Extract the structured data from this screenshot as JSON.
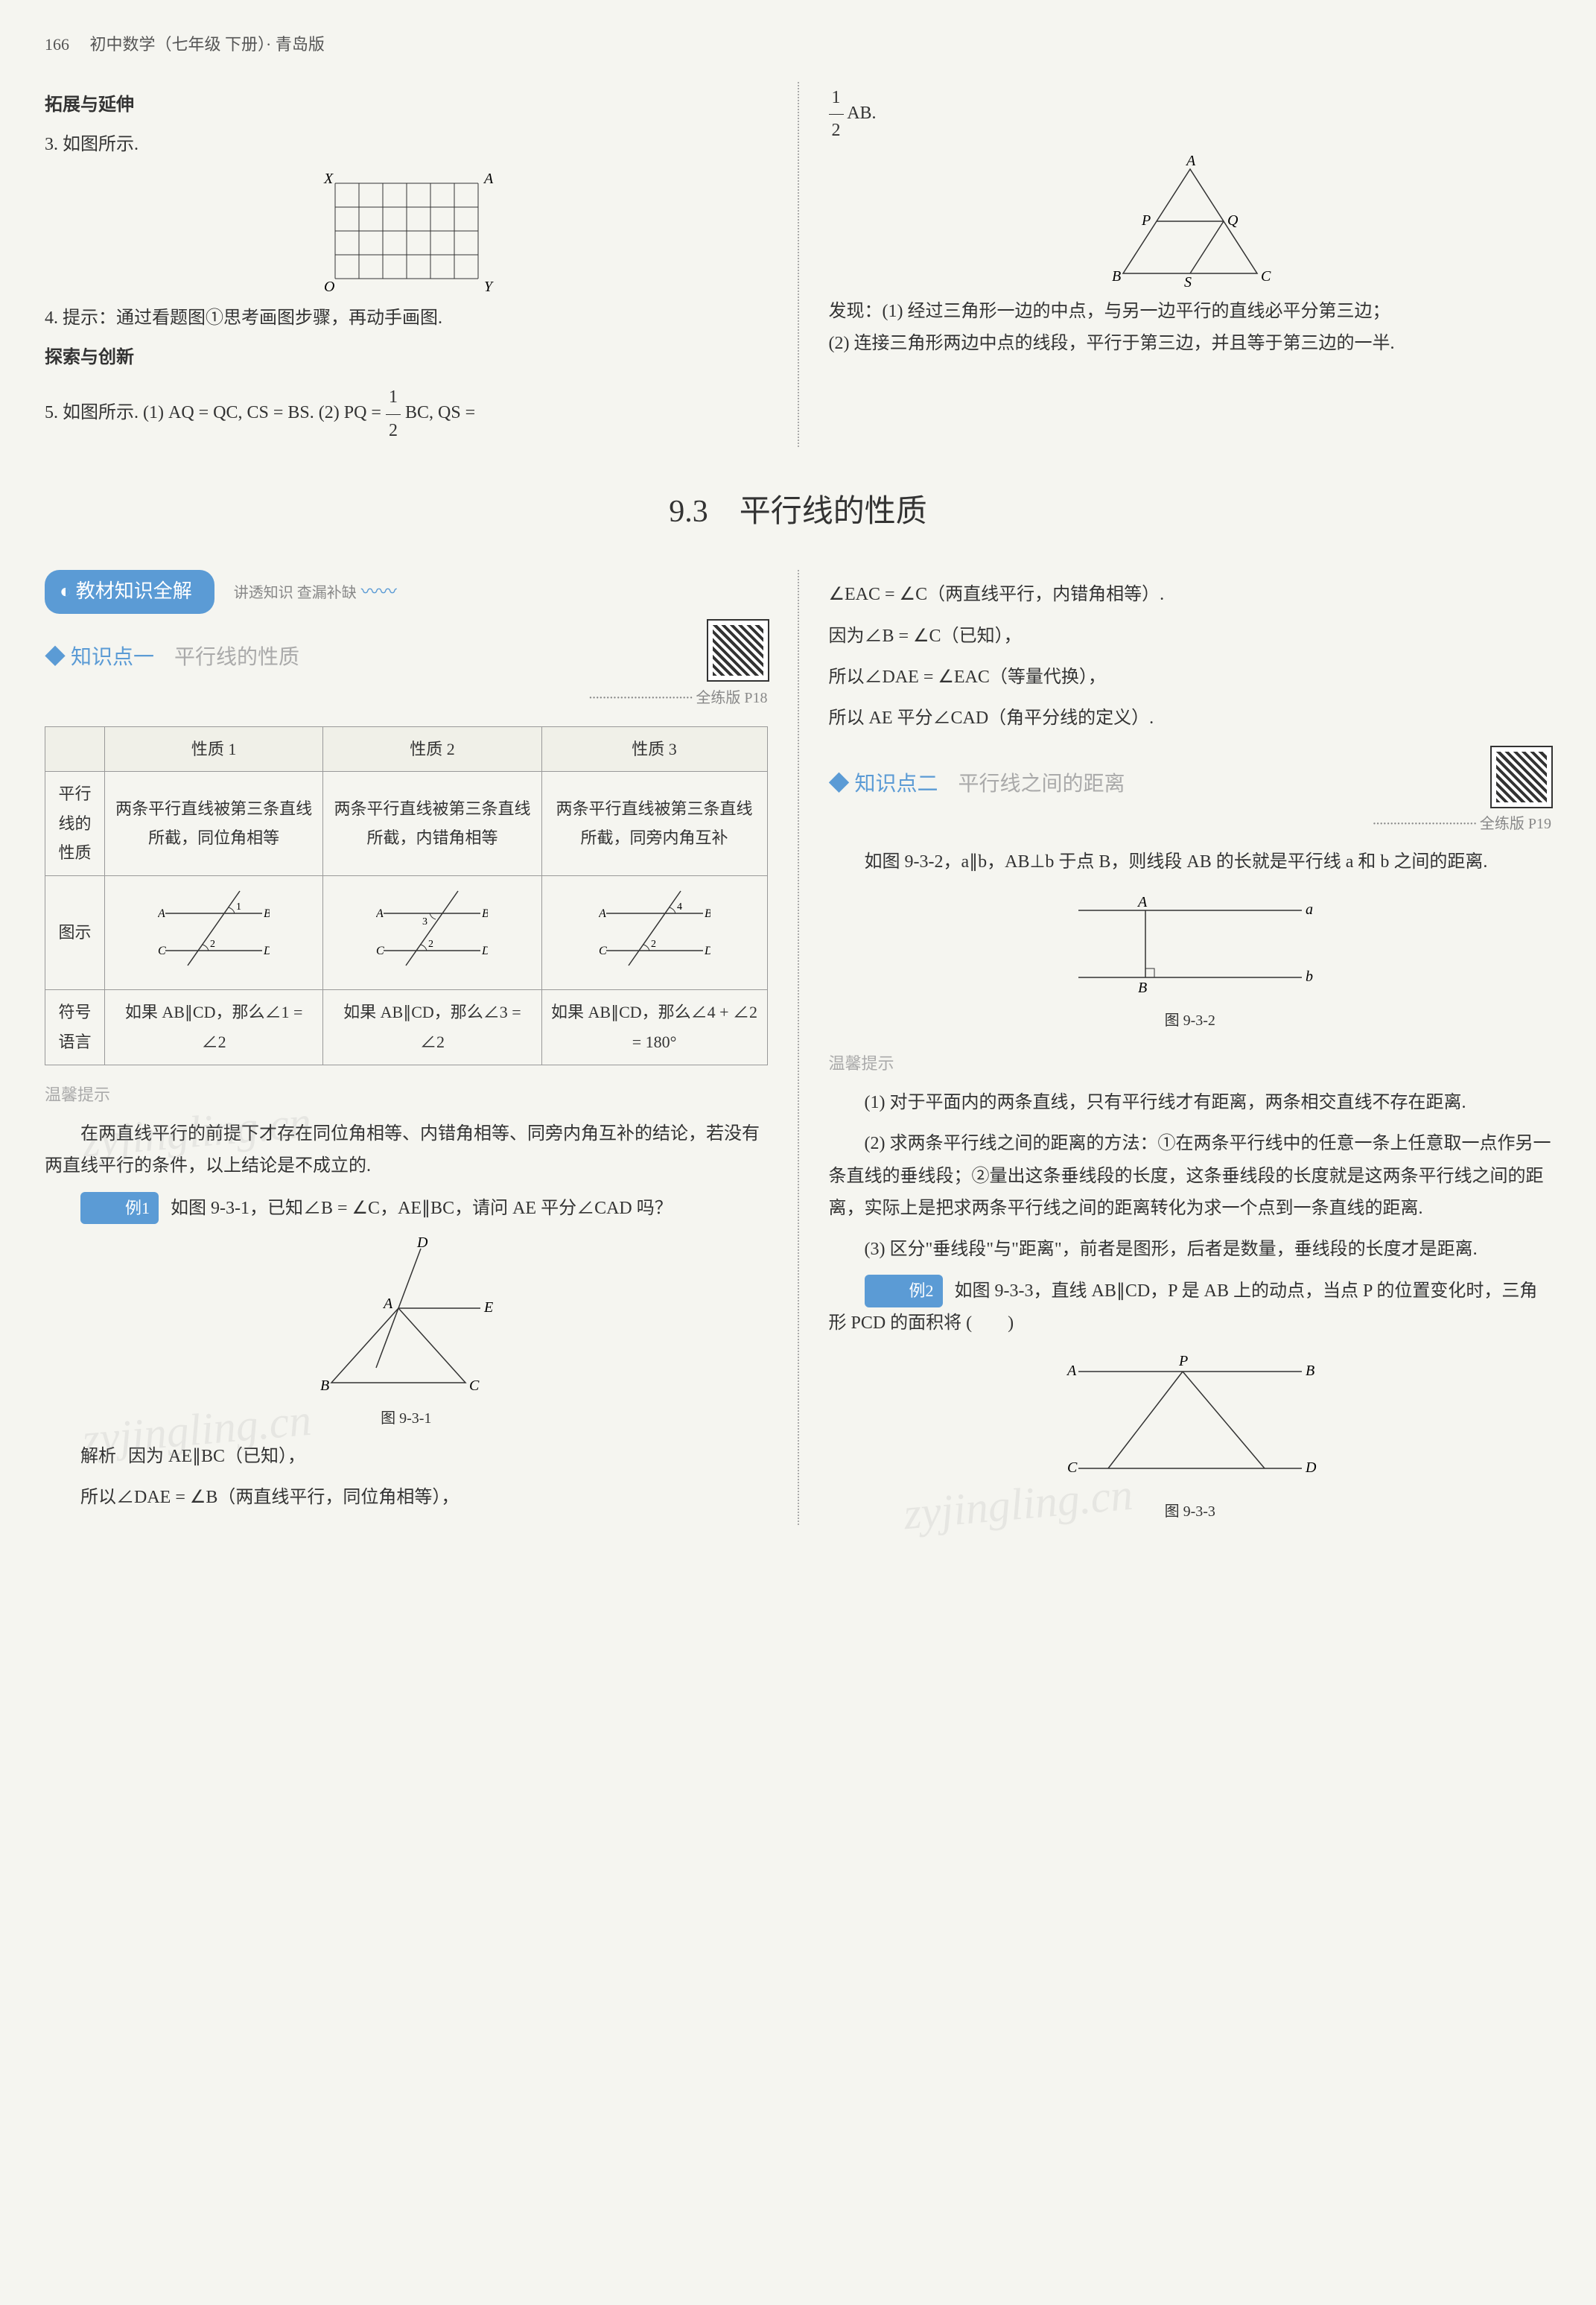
{
  "header": {
    "page_num": "166",
    "book_title": "初中数学（七年级 下册）· 青岛版"
  },
  "top_left": {
    "h1": "拓展与延伸",
    "p3": "3. 如图所示.",
    "grid": {
      "labels": [
        "X",
        "A",
        "O",
        "Y"
      ],
      "rows": 4,
      "cols": 6,
      "cell": 32,
      "stroke": "#333"
    },
    "p4": "4. 提示：通过看题图①思考画图步骤，再动手画图.",
    "h2": "探索与创新",
    "p5_prefix": "5. 如图所示. (1) AQ = QC, CS = BS. (2) PQ = ",
    "p5_frac_num": "1",
    "p5_frac_den": "2",
    "p5_frac_after": "BC, QS ="
  },
  "top_right": {
    "p1_num": "1",
    "p1_den": "2",
    "p1_after": "AB.",
    "triangle": {
      "labels": [
        "A",
        "P",
        "Q",
        "B",
        "S",
        "C"
      ]
    },
    "p2": "发现：(1) 经过三角形一边的中点，与另一边平行的直线必平分第三边；",
    "p3": "(2) 连接三角形两边中点的线段，平行于第三边，并且等于第三边的一半."
  },
  "main_title": "9.3　平行线的性质",
  "pill": {
    "text": "教材知识全解",
    "sub": "讲透知识 查漏补缺"
  },
  "kp1": {
    "prefix": "◆ 知识点一",
    "title": "平行线的性质",
    "ref": "全练版 P18",
    "table": {
      "headers": [
        "",
        "性质 1",
        "性质 2",
        "性质 3"
      ],
      "row_props_label": "平行线的性质",
      "row_props": [
        "两条平行直线被第三条直线所截，同位角相等",
        "两条平行直线被第三条直线所截，内错角相等",
        "两条平行直线被第三条直线所截，同旁内角互补"
      ],
      "row_fig_label": "图示",
      "row_sym_label": "符号语言",
      "row_sym": [
        "如果 AB∥CD，那么∠1 = ∠2",
        "如果 AB∥CD，那么∠3 = ∠2",
        "如果 AB∥CD，那么∠4 + ∠2 = 180°"
      ],
      "fig_colors": {
        "line": "#333",
        "arc": "#666"
      }
    },
    "hint_label": "温馨提示",
    "hint_text": "在两直线平行的前提下才存在同位角相等、内错角相等、同旁内角互补的结论，若没有两直线平行的条件，以上结论是不成立的.",
    "ex1_label": "例1",
    "ex1_text": "如图 9-3-1，已知∠B = ∠C，AE∥BC，请问 AE 平分∠CAD 吗？",
    "fig_9_3_1": {
      "caption": "图 9-3-1",
      "labels": [
        "D",
        "A",
        "E",
        "B",
        "C"
      ]
    },
    "ex1_sol_label": "解析",
    "ex1_sol_l1": "因为 AE∥BC（已知），",
    "ex1_sol_l2": "所以∠DAE = ∠B（两直线平行，同位角相等），"
  },
  "right_col": {
    "cont1": "∠EAC = ∠C（两直线平行，内错角相等）.",
    "cont2": "因为∠B = ∠C（已知），",
    "cont3": "所以∠DAE = ∠EAC（等量代换），",
    "cont4": "所以 AE 平分∠CAD（角平分线的定义）.",
    "kp2_prefix": "◆ 知识点二",
    "kp2_title": "平行线之间的距离",
    "kp2_ref": "全练版 P19",
    "kp2_intro": "如图 9-3-2，a∥b，AB⊥b 于点 B，则线段 AB 的长就是平行线 a 和 b 之间的距离.",
    "fig_9_3_2": {
      "caption": "图 9-3-2",
      "labels": [
        "A",
        "a",
        "B",
        "b"
      ]
    },
    "hint_label": "温馨提示",
    "hint_p1": "(1) 对于平面内的两条直线，只有平行线才有距离，两条相交直线不存在距离.",
    "hint_p2": "(2) 求两条平行线之间的距离的方法：①在两条平行线中的任意一条上任意取一点作另一条直线的垂线段；②量出这条垂线段的长度，这条垂线段的长度就是这两条平行线之间的距离，实际上是把求两条平行线之间的距离转化为求一个点到一条直线的距离.",
    "hint_p3": "(3) 区分\"垂线段\"与\"距离\"，前者是图形，后者是数量，垂线段的长度才是距离.",
    "ex2_label": "例2",
    "ex2_text": "如图 9-3-3，直线 AB∥CD，P 是 AB 上的动点，当点 P 的位置变化时，三角形 PCD 的面积将 (　　)",
    "fig_9_3_3": {
      "caption": "图 9-3-3",
      "labels": [
        "A",
        "P",
        "B",
        "C",
        "D"
      ]
    }
  },
  "watermarks": [
    "zyjingling.cn",
    "zyjingling.cn",
    "zyjingling.cn"
  ]
}
